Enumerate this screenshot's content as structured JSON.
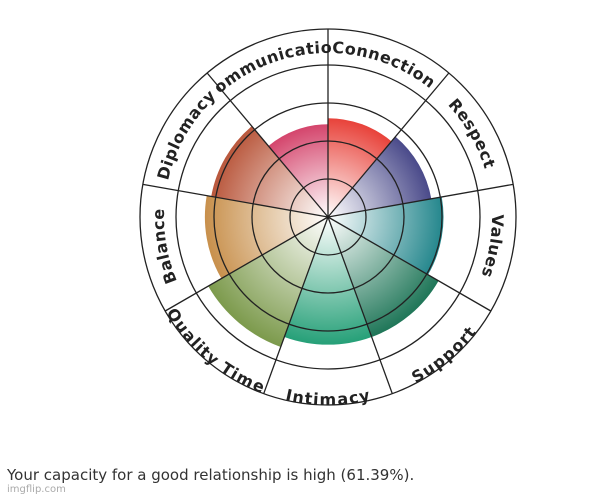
{
  "chart_data": {
    "type": "polar-area",
    "categories": [
      "Connection",
      "Respect",
      "Values",
      "Support",
      "Intimacy",
      "Quality Time",
      "Balance",
      "Diplomacy",
      "Communication"
    ],
    "values": [
      65,
      69,
      76,
      84,
      84,
      91,
      81,
      78,
      61
    ],
    "colors": [
      "#e8423a",
      "#4a4a8a",
      "#23868c",
      "#1f7658",
      "#26a078",
      "#7c9a4c",
      "#c8904c",
      "#b9573c",
      "#d4456c"
    ],
    "rlim": [
      0,
      100
    ]
  },
  "caption": "Your capacity for a good relationship is high (61.39%).",
  "watermark": "imgflip.com"
}
